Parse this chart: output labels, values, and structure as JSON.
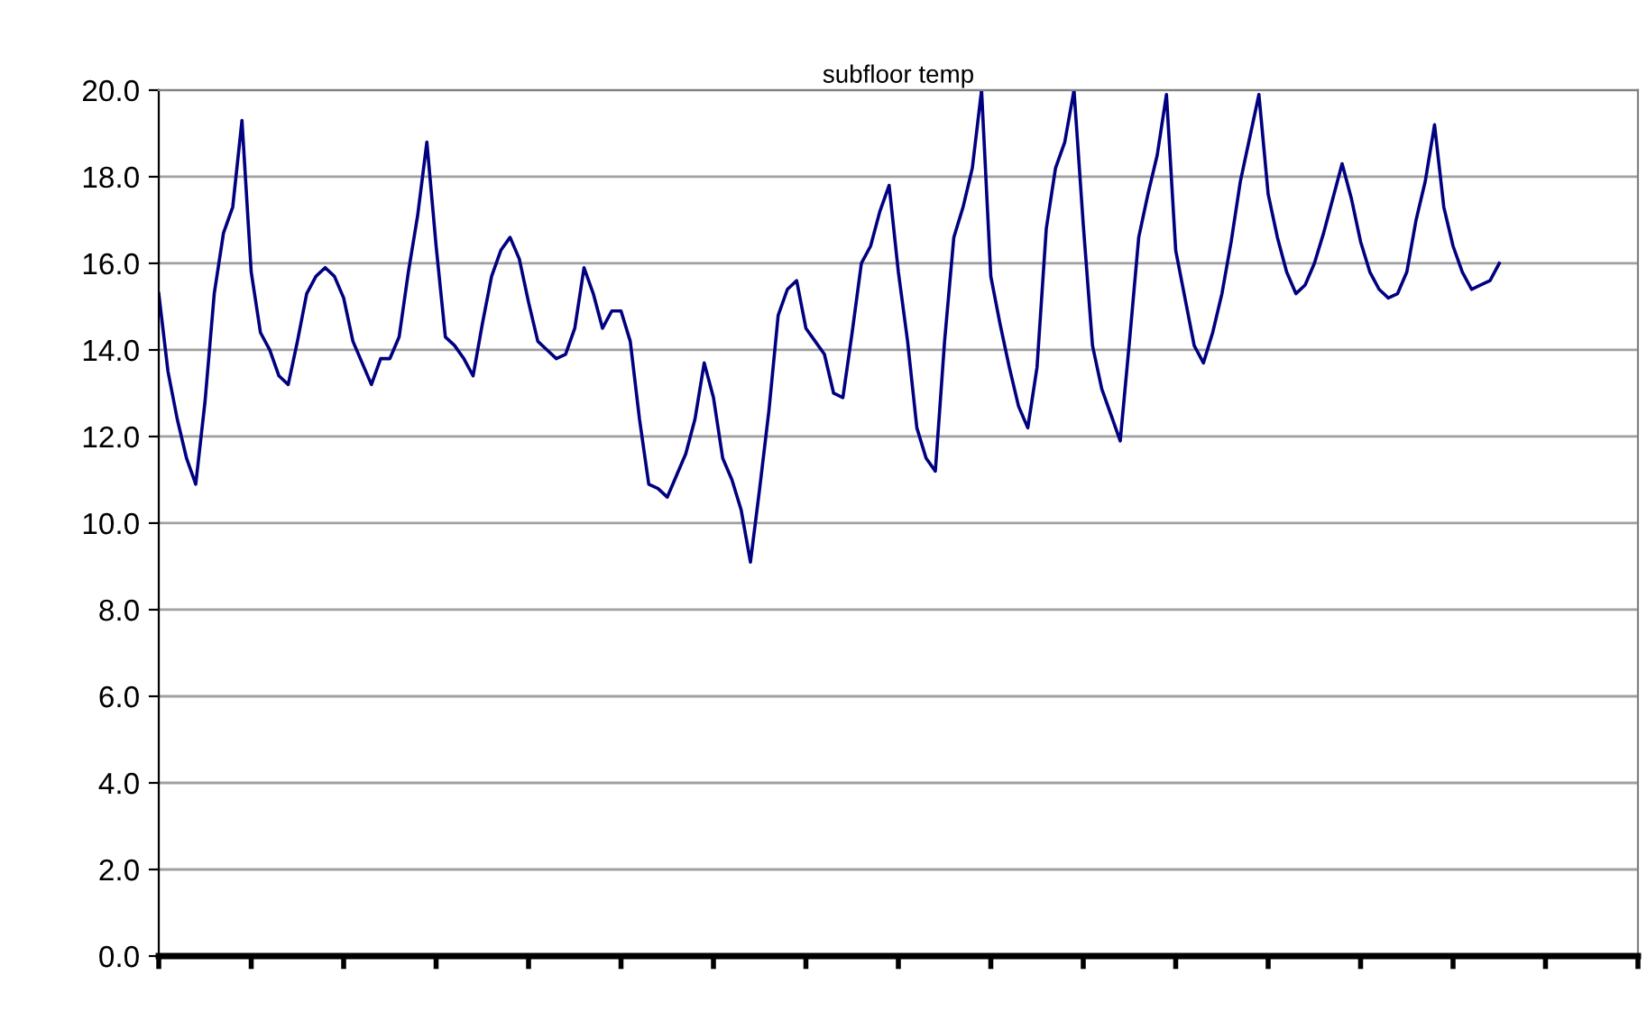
{
  "chart_data": {
    "type": "line",
    "title": "subfloor temp",
    "categories": [
      null,
      null,
      null,
      null,
      null,
      null,
      null,
      null,
      null,
      null,
      null,
      null,
      null,
      null,
      null,
      null,
      null,
      null,
      null,
      null,
      null,
      null,
      null,
      null,
      null,
      null,
      null,
      null,
      null,
      null,
      null,
      null,
      null,
      null,
      null,
      null,
      null,
      null,
      null,
      null,
      null,
      null,
      null,
      null,
      null,
      null,
      null,
      null,
      null,
      null,
      null,
      null,
      null,
      null,
      null,
      null,
      null,
      null,
      null,
      null,
      null,
      null,
      null,
      null,
      null,
      null,
      null,
      null,
      null,
      null,
      null,
      null,
      null,
      null,
      null,
      null,
      null,
      null,
      null,
      null,
      null,
      null,
      null,
      null,
      null,
      null,
      null,
      null,
      null,
      null,
      null,
      null,
      null,
      null,
      null,
      null,
      null,
      null,
      null,
      null,
      null,
      null,
      null,
      null,
      null,
      null,
      null,
      null,
      null,
      null,
      null,
      null,
      null,
      null,
      null,
      null,
      null,
      null,
      null,
      null,
      null,
      null,
      null,
      null,
      null,
      null,
      null,
      null,
      null,
      null,
      null,
      null,
      null,
      null,
      null,
      null,
      null,
      null,
      null,
      null,
      null,
      null,
      null,
      null,
      null,
      null,
      null,
      null,
      null,
      null,
      null,
      null,
      null,
      null,
      null,
      null,
      null,
      null,
      null,
      null,
      null
    ],
    "ylim": [
      0,
      20
    ],
    "yticks": [
      {
        "value": 0,
        "label": "0.0"
      },
      {
        "value": 2,
        "label": "2.0"
      },
      {
        "value": 4,
        "label": "4.0"
      },
      {
        "value": 6,
        "label": "6.0"
      },
      {
        "value": 8,
        "label": "8.0"
      },
      {
        "value": 10,
        "label": "10.0"
      },
      {
        "value": 12,
        "label": "12.0"
      },
      {
        "value": 14,
        "label": "14.0"
      },
      {
        "value": 16,
        "label": "16.0"
      },
      {
        "value": 18,
        "label": "18.0"
      },
      {
        "value": 20,
        "label": "20.0"
      }
    ],
    "grid": "y",
    "marker": "none",
    "line_style": "solid",
    "series": [
      {
        "color": "#000080",
        "values": [
          15.3,
          13.5,
          12.4,
          11.5,
          10.9,
          12.8,
          15.3,
          16.7,
          17.3,
          19.3,
          15.8,
          14.4,
          14.0,
          13.4,
          13.2,
          14.2,
          15.3,
          15.7,
          15.9,
          15.7,
          15.2,
          14.2,
          13.7,
          13.2,
          13.8,
          13.8,
          14.3,
          15.8,
          17.1,
          18.8,
          16.4,
          14.3,
          14.1,
          13.8,
          13.4,
          14.6,
          15.7,
          16.3,
          16.6,
          16.1,
          15.1,
          14.2,
          14.0,
          13.8,
          13.9,
          14.5,
          15.9,
          15.3,
          14.5,
          14.9,
          14.9,
          14.2,
          12.4,
          10.9,
          10.8,
          10.6,
          11.1,
          11.6,
          12.4,
          13.7,
          12.9,
          11.5,
          11.0,
          10.3,
          9.1,
          10.8,
          12.6,
          14.8,
          15.4,
          15.6,
          14.5,
          14.2,
          13.9,
          13.0,
          12.9,
          14.4,
          16.0,
          16.4,
          17.2,
          17.8,
          15.8,
          14.2,
          12.2,
          11.5,
          11.2,
          14.2,
          16.6,
          17.3,
          18.2,
          20.0,
          15.7,
          14.6,
          13.6,
          12.7,
          12.2,
          13.6,
          16.8,
          18.2,
          18.8,
          20.0,
          16.9,
          14.1,
          13.1,
          12.5,
          11.9,
          14.2,
          16.6,
          17.6,
          18.5,
          19.9,
          16.3,
          15.2,
          14.1,
          13.7,
          14.4,
          15.3,
          16.5,
          17.9,
          18.9,
          19.9,
          17.6,
          16.6,
          15.8,
          15.3,
          15.5,
          16.0,
          16.7,
          17.5,
          18.3,
          17.5,
          16.5,
          15.8,
          15.4,
          15.2,
          15.3,
          15.8,
          17.0,
          17.9,
          19.2,
          17.3,
          16.4,
          15.8,
          15.4,
          15.5,
          15.6,
          16.0,
          null,
          null,
          null,
          null,
          null,
          null,
          null,
          null,
          null,
          null,
          null,
          null,
          null,
          null,
          null
        ]
      }
    ]
  }
}
